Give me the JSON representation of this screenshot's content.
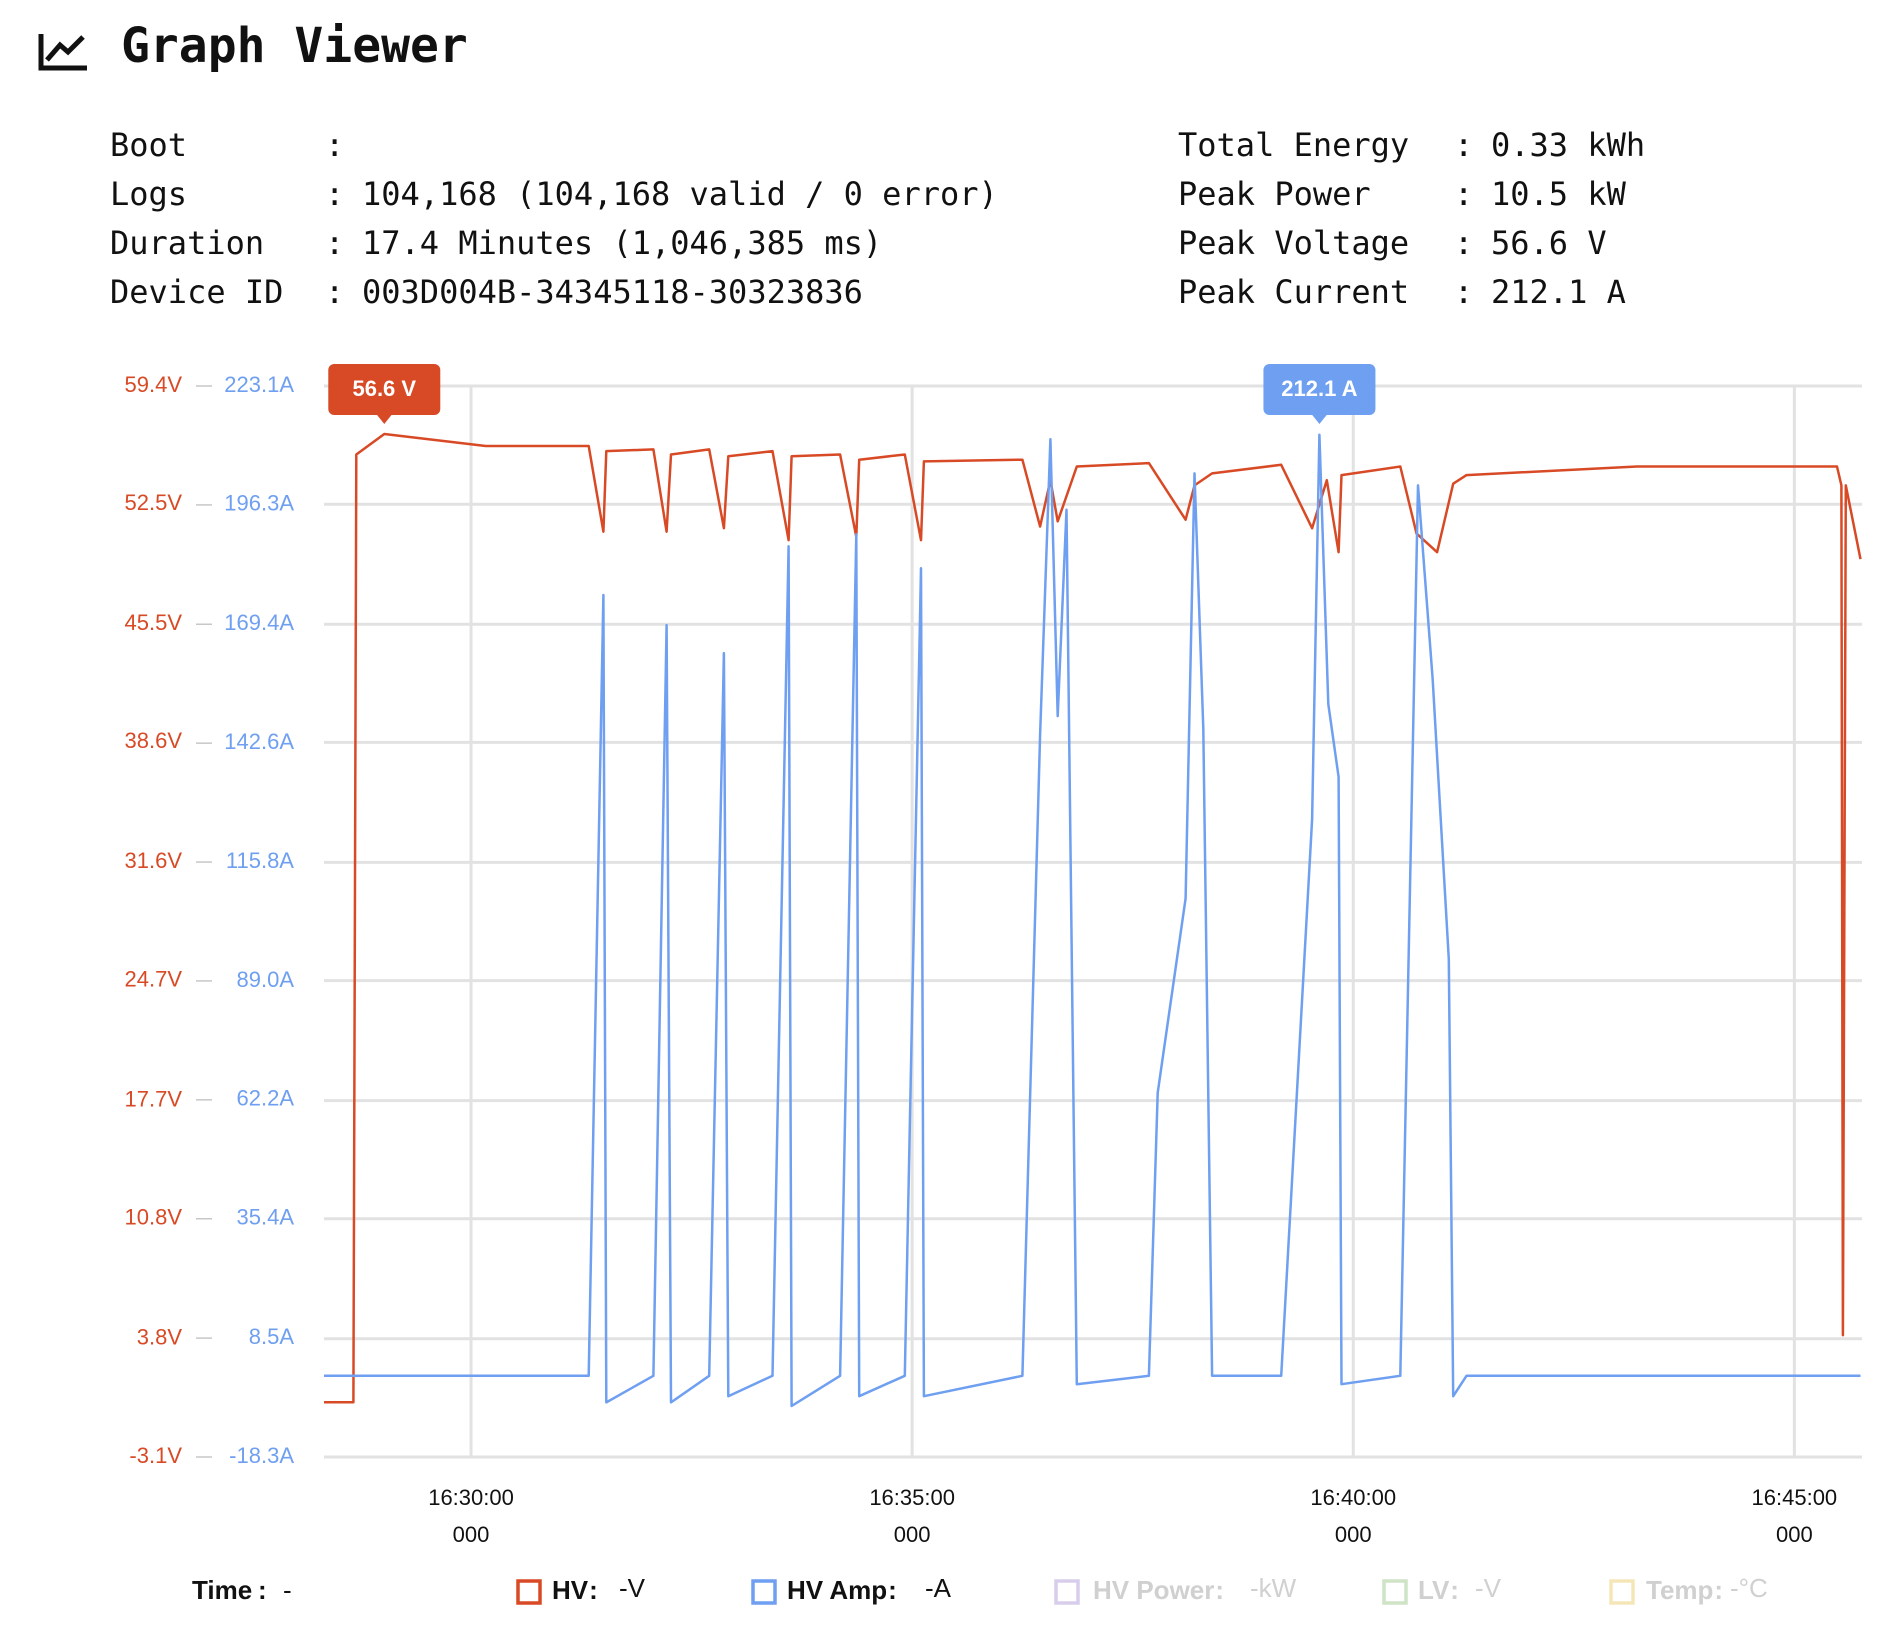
{
  "header": {
    "title": "Graph Viewer"
  },
  "info": {
    "left": [
      {
        "label": "Boot"
      },
      {
        "label": "Logs",
        "value": "104,168 (104,168 valid / 0 error)"
      },
      {
        "label": "Duration",
        "value": "17.4 Minutes (1,046,385 ms)"
      },
      {
        "label": "Device ID",
        "value": "003D004B-34345118-30323836"
      }
    ],
    "right": [
      {
        "label": "Total Energy",
        "value": "0.33 kWh"
      },
      {
        "label": "Peak Power",
        "value": "10.5 kW"
      },
      {
        "label": "Peak Voltage",
        "value": "56.6 V"
      },
      {
        "label": "Peak Current",
        "value": "212.1 A"
      }
    ]
  },
  "chart_data": {
    "type": "line",
    "xlim": [
      59300,
      60346
    ],
    "xticks": [
      {
        "value": 59400,
        "label": "16:30:00"
      },
      {
        "value": 59700,
        "label": "16:35:00"
      },
      {
        "value": 60000,
        "label": "16:40:00"
      },
      {
        "value": 60300,
        "label": "16:45:00"
      }
    ],
    "xtick_ms_labels": [
      "000",
      "000",
      "000",
      "000"
    ],
    "ylim": [
      -3.1,
      59.4
    ],
    "yticks": [
      {
        "value": -3.1,
        "label": "-3.1V"
      },
      {
        "value": 3.8,
        "label": "3.8V"
      },
      {
        "value": 10.8,
        "label": "10.8V"
      },
      {
        "value": 17.7,
        "label": "17.7V"
      },
      {
        "value": 24.7,
        "label": "24.7V"
      },
      {
        "value": 31.6,
        "label": "31.6V"
      },
      {
        "value": 38.6,
        "label": "38.6V"
      },
      {
        "value": 45.5,
        "label": "45.5V"
      },
      {
        "value": 52.5,
        "label": "52.5V"
      },
      {
        "value": 59.4,
        "label": "59.4V"
      }
    ],
    "y2lim": [
      -18.3,
      223.1
    ],
    "y2ticks": [
      {
        "value": -18.3,
        "label": "-18.3A"
      },
      {
        "value": 8.5,
        "label": "8.5A"
      },
      {
        "value": 35.4,
        "label": "35.4A"
      },
      {
        "value": 62.2,
        "label": "62.2A"
      },
      {
        "value": 89.0,
        "label": "89.0A"
      },
      {
        "value": 115.8,
        "label": "115.8A"
      },
      {
        "value": 142.6,
        "label": "142.6A"
      },
      {
        "value": 169.4,
        "label": "169.4A"
      },
      {
        "value": 196.3,
        "label": "196.3A"
      },
      {
        "value": 223.1,
        "label": "223.1A"
      }
    ],
    "grid": true,
    "time_legend": {
      "name": "Time",
      "readout": "-"
    },
    "series": [
      {
        "name": "HV",
        "readout": "-V",
        "color": "#d84a26",
        "x": [
          59300,
          59320,
          59322,
          59341,
          59410,
          59480,
          59490,
          59492,
          59524,
          59533,
          59536,
          59562,
          59572,
          59575,
          59605,
          59616,
          59618,
          59651,
          59662,
          59664,
          59695,
          59706,
          59708,
          59775,
          59787,
          59794,
          59799,
          59812,
          59861,
          59886,
          59892,
          59904,
          59951,
          59972,
          59982,
          59990,
          59992,
          60032,
          60043,
          60057,
          60068,
          60077,
          60193,
          60329,
          60332,
          60333,
          60335,
          60345
        ],
        "values": [
          0.1,
          0.1,
          55.4,
          56.6,
          55.9,
          55.9,
          50.9,
          55.6,
          55.7,
          50.9,
          55.4,
          55.7,
          51.1,
          55.3,
          55.6,
          50.4,
          55.3,
          55.4,
          50.6,
          55.1,
          55.4,
          50.4,
          55.0,
          55.1,
          51.2,
          53.9,
          51.5,
          54.7,
          54.9,
          51.6,
          53.6,
          54.3,
          54.8,
          51.1,
          53.9,
          49.7,
          54.2,
          54.7,
          50.8,
          49.7,
          53.7,
          54.2,
          54.7,
          54.7,
          53.6,
          4.0,
          53.6,
          49.3
        ]
      },
      {
        "name": "HV Amp",
        "readout": "-A",
        "color": "#6f9ff0",
        "axis": "y2",
        "x": [
          59300,
          59480,
          59490,
          59492,
          59524,
          59533,
          59536,
          59562,
          59572,
          59575,
          59605,
          59616,
          59618,
          59651,
          59662,
          59664,
          59695,
          59706,
          59708,
          59775,
          59787,
          59794,
          59799,
          59805,
          59812,
          59861,
          59867,
          59886,
          59892,
          59898,
          59904,
          59951,
          59972,
          59977,
          59983,
          59990,
          59992,
          60032,
          60044,
          60054,
          60065,
          60068,
          60077,
          60329,
          60345
        ],
        "values": [
          0.0,
          0.0,
          176.0,
          -6.0,
          0.0,
          169.2,
          -6.0,
          0.0,
          162.9,
          -4.6,
          0.0,
          187.0,
          -6.8,
          0.0,
          189.7,
          -4.6,
          0.0,
          182.0,
          -4.6,
          0.0,
          144.5,
          211.1,
          148.7,
          195.2,
          -1.9,
          0.0,
          63.8,
          107.6,
          203.4,
          145.9,
          0.0,
          0.0,
          125.4,
          212.1,
          151.4,
          135.0,
          -1.9,
          0.0,
          200.7,
          156.9,
          93.9,
          -4.6,
          0.0,
          0.0,
          0.0
        ]
      }
    ],
    "inactive_legend": [
      {
        "name": "HV Power",
        "readout": "-kW",
        "color": "#d9cdec"
      },
      {
        "name": "LV",
        "readout": "-V",
        "color": "#cfe3c6"
      },
      {
        "name": "Temp",
        "readout": "-°C",
        "color": "#f5e6b8"
      }
    ],
    "annotations": [
      {
        "label": "56.6 V",
        "x": 59341,
        "y": 56.6,
        "series": 0
      },
      {
        "label": "212.1 A",
        "x": 59977,
        "y": 212.1,
        "series": 1
      }
    ]
  }
}
